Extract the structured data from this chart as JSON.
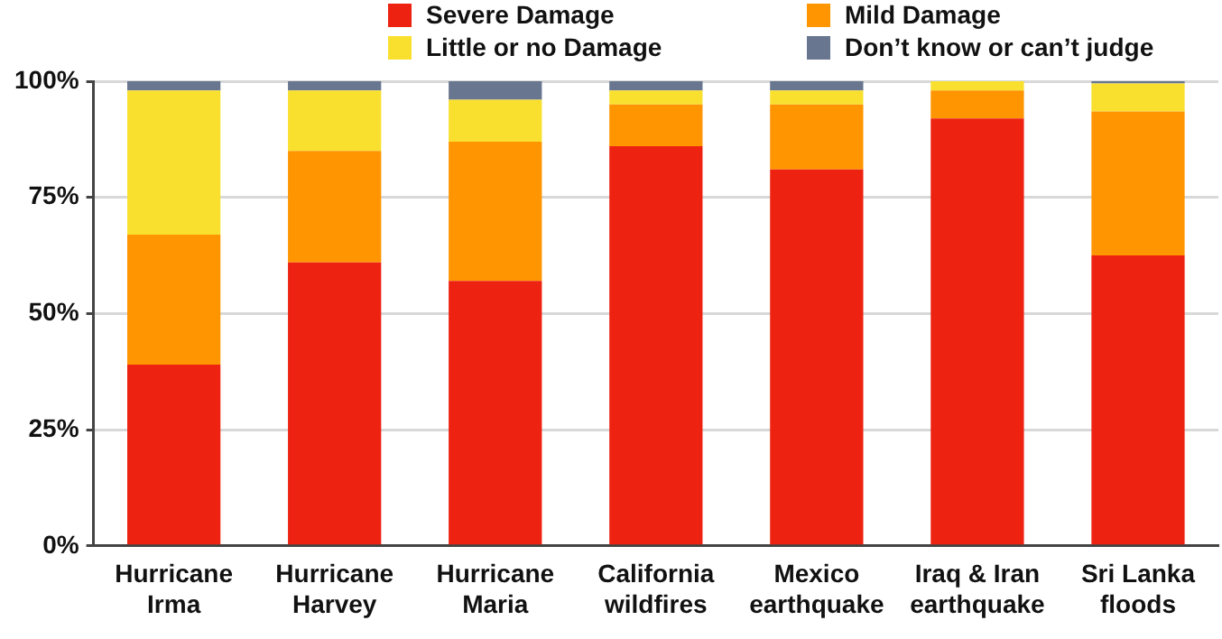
{
  "chart_data": {
    "type": "bar",
    "stacked": true,
    "categories": [
      "Hurricane Irma",
      "Hurricane Harvey",
      "Hurricane Maria",
      "California wildfires",
      "Mexico earthquake",
      "Iraq & Iran earthquake",
      "Sri Lanka floods"
    ],
    "series": [
      {
        "name": "Severe Damage",
        "color": "#ee2211",
        "values": [
          39,
          61,
          57,
          86,
          81,
          92,
          62.5
        ]
      },
      {
        "name": "Mild Damage",
        "color": "#ff9500",
        "values": [
          28,
          24,
          30,
          9,
          14,
          6,
          31
        ]
      },
      {
        "name": "Little or no Damage",
        "color": "#f9e02f",
        "values": [
          31,
          13,
          9,
          3,
          3,
          2,
          6
        ]
      },
      {
        "name": "Don’t know or can’t judge",
        "color": "#687690",
        "values": [
          2,
          2,
          4,
          2,
          2,
          0,
          0.5
        ]
      }
    ],
    "ylim": [
      0,
      100
    ],
    "yticks": [
      {
        "value": 0,
        "label": "0%"
      },
      {
        "value": 25,
        "label": "25%"
      },
      {
        "value": 50,
        "label": "50%"
      },
      {
        "value": 75,
        "label": "75%"
      },
      {
        "value": 100,
        "label": "100%"
      }
    ],
    "grid": "y",
    "legend": "top"
  }
}
